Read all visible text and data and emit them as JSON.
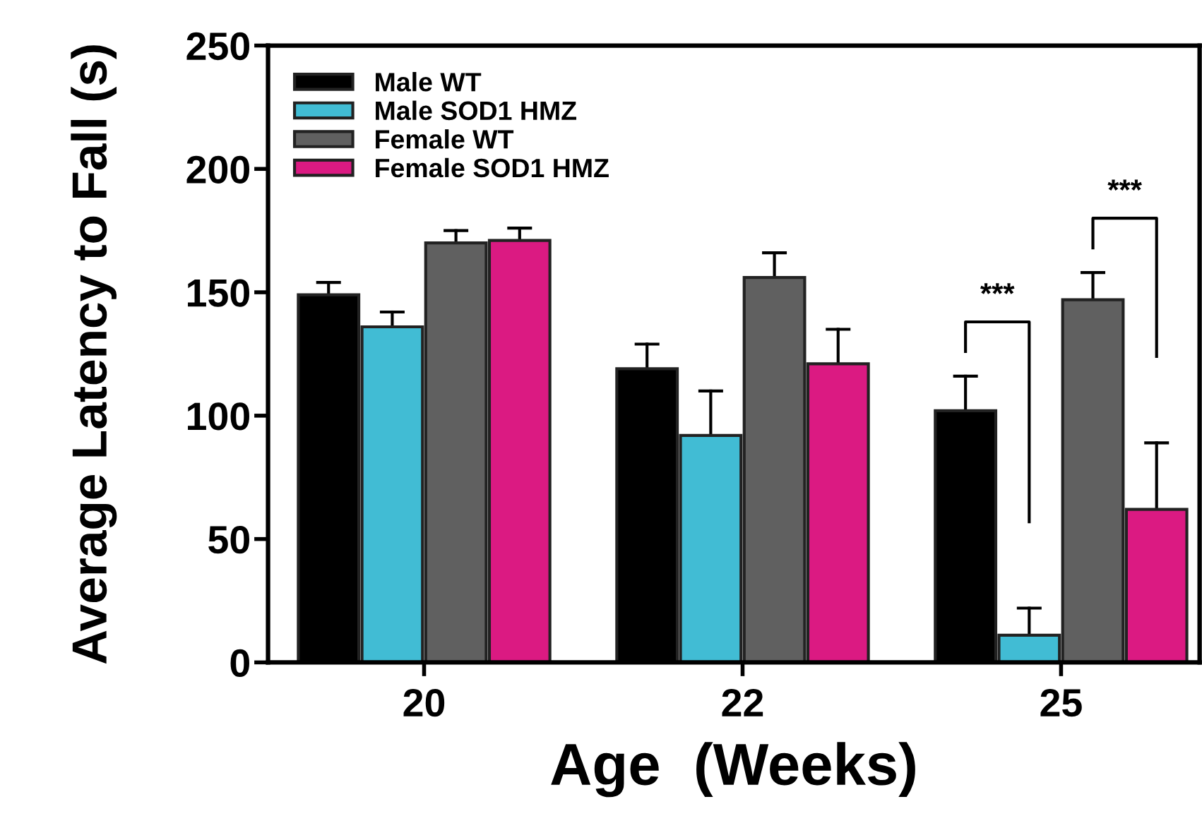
{
  "chart_data": {
    "type": "bar",
    "xlabel": "Age  (Weeks)",
    "ylabel": "Average Latency to Fall (s)",
    "categories": [
      "20",
      "22",
      "25"
    ],
    "series": [
      {
        "name": "Male WT",
        "color": "#000000",
        "values": [
          149,
          119,
          102
        ],
        "errors": [
          [
            149,
            154
          ],
          [
            119,
            129
          ],
          [
            102,
            116
          ]
        ]
      },
      {
        "name": "Male SOD1 HMZ",
        "color": "#41bcd4",
        "values": [
          136,
          92,
          11
        ],
        "errors": [
          [
            136,
            142
          ],
          [
            92,
            110
          ],
          [
            11,
            22
          ]
        ]
      },
      {
        "name": "Female WT",
        "color": "#606060",
        "values": [
          170,
          156,
          147
        ],
        "errors": [
          [
            170,
            175
          ],
          [
            156,
            166
          ],
          [
            147,
            158
          ]
        ]
      },
      {
        "name": "Female SOD1 HMZ",
        "color": "#db1a82",
        "values": [
          171,
          121,
          62
        ],
        "errors": [
          [
            171,
            176
          ],
          [
            121,
            135
          ],
          [
            62,
            89
          ]
        ]
      }
    ],
    "ylim": [
      0,
      250
    ],
    "yticks": [
      0,
      50,
      100,
      150,
      200,
      250
    ],
    "grid": false,
    "legend": "top left",
    "annotations": [
      "***",
      "***"
    ]
  }
}
